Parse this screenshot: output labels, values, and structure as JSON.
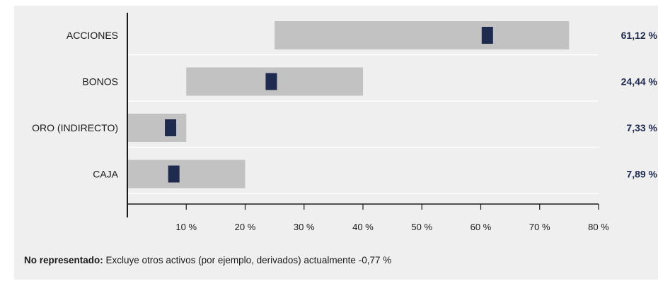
{
  "chart_data": {
    "type": "bar",
    "categories": [
      "ACCIONES",
      "BONOS",
      "ORO (INDIRECTO)",
      "CAJA"
    ],
    "ranges": [
      {
        "min": 25,
        "max": 75
      },
      {
        "min": 10,
        "max": 40
      },
      {
        "min": 0,
        "max": 10
      },
      {
        "min": 0,
        "max": 20
      }
    ],
    "values": [
      61.12,
      24.44,
      7.33,
      7.89
    ],
    "value_labels": [
      "61,12 %",
      "24,44 %",
      "7,33 %",
      "7,89 %"
    ],
    "xlim": [
      0,
      80
    ],
    "xticks": [
      10,
      20,
      30,
      40,
      50,
      60,
      70,
      80
    ],
    "xtick_labels": [
      "10 %",
      "20 %",
      "30 %",
      "40 %",
      "50 %",
      "60 %",
      "70 %",
      "80 %"
    ],
    "grid": "horizontal separators",
    "colors": {
      "range_bar": "#c2c2c2",
      "marker": "#1f2a4f",
      "value_label": "#1f2a4f",
      "axis": "#1a1a1a",
      "gridline": "#ffffff"
    }
  },
  "footnote": {
    "bold": "No representado:",
    "text": " Excluye otros activos (por ejemplo, derivados) actualmente -0,77 %"
  }
}
